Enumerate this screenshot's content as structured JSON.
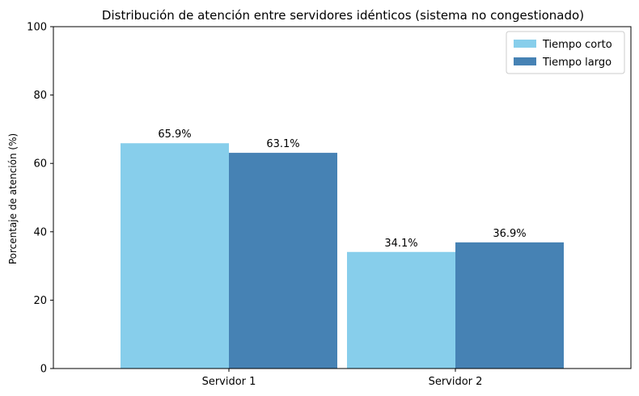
{
  "chart_data": {
    "type": "bar",
    "title": "Distribución de atención entre servidores idénticos (sistema no congestionado)",
    "xlabel": "",
    "ylabel": "Porcentaje de atención (%)",
    "ylim": [
      0,
      100
    ],
    "yticks": [
      0,
      20,
      40,
      60,
      80,
      100
    ],
    "categories": [
      "Servidor 1",
      "Servidor 2"
    ],
    "series": [
      {
        "name": "Tiempo corto",
        "color": "#87ceeb",
        "values": [
          65.9,
          34.1
        ],
        "labels": [
          "65.9%",
          "34.1%"
        ]
      },
      {
        "name": "Tiempo largo",
        "color": "#4682b4",
        "values": [
          63.1,
          36.9
        ],
        "labels": [
          "63.1%",
          "36.9%"
        ]
      }
    ],
    "grid": false,
    "legend": "top-right"
  }
}
